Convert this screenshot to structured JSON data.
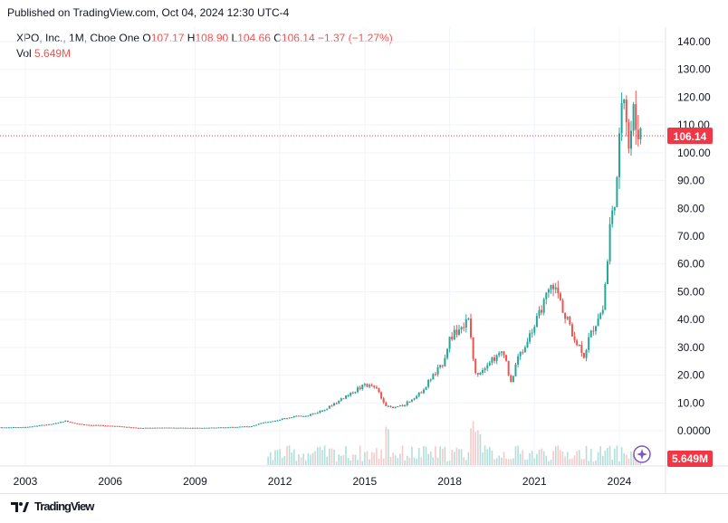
{
  "header": {
    "published": "Published on TradingView.com, Oct 04, 2024 12:30 UTC-4"
  },
  "legend": {
    "symbol": "XPO, Inc., 1M, Cboe One",
    "o_label": "O",
    "o_value": "107.17",
    "h_label": "H",
    "h_value": "108.90",
    "l_label": "L",
    "l_value": "104.66",
    "c_label": "C",
    "c_value": "106.14",
    "change": "−1.37 (−1.27%)",
    "vol_label": "Vol",
    "vol_value": "5.649M"
  },
  "price_tag": "106.14",
  "vol_tag": "5.649M",
  "footer": {
    "brand": "TradingView"
  },
  "colors": {
    "up": "#26a69a",
    "down": "#ef5350",
    "grid": "#f0f3fa",
    "tag_bg": "#f23645"
  },
  "chart_data": {
    "type": "candlestick",
    "x_axis": {
      "labels": [
        "2003",
        "2006",
        "2009",
        "2012",
        "2015",
        "2018",
        "2021",
        "2024"
      ]
    },
    "y_axis": {
      "labels": [
        "140.00",
        "130.00",
        "120.00",
        "110.00",
        "100.00",
        "90.00",
        "80.00",
        "70.00",
        "60.00",
        "50.00",
        "40.00",
        "30.00",
        "20.00",
        "10.00",
        "0.0000"
      ],
      "range": [
        0,
        140
      ]
    },
    "last_price": 106.14,
    "last_volume": "5.649M",
    "series": [
      {
        "name": "XPO, Inc.",
        "period": "1M",
        "points": [
          {
            "date": "2002-01",
            "close": 1.2
          },
          {
            "date": "2003-01",
            "close": 1.3
          },
          {
            "date": "2004-01",
            "close": 2.5
          },
          {
            "date": "2004-06",
            "close": 3.5
          },
          {
            "date": "2005-01",
            "close": 2.2
          },
          {
            "date": "2006-01",
            "close": 1.8
          },
          {
            "date": "2007-01",
            "close": 1.0
          },
          {
            "date": "2008-01",
            "close": 1.1
          },
          {
            "date": "2009-01",
            "close": 1.0
          },
          {
            "date": "2010-01",
            "close": 1.2
          },
          {
            "date": "2011-01",
            "close": 1.6
          },
          {
            "date": "2011-06",
            "close": 3.0
          },
          {
            "date": "2012-01",
            "close": 4.0
          },
          {
            "date": "2012-06",
            "close": 5.0
          },
          {
            "date": "2013-01",
            "close": 5.5
          },
          {
            "date": "2013-06",
            "close": 7.0
          },
          {
            "date": "2014-01",
            "close": 10.0
          },
          {
            "date": "2014-06",
            "close": 13.0
          },
          {
            "date": "2015-01",
            "close": 16.5
          },
          {
            "date": "2015-06",
            "close": 15.0
          },
          {
            "date": "2015-10",
            "close": 9.0
          },
          {
            "date": "2016-01",
            "close": 8.0
          },
          {
            "date": "2016-06",
            "close": 9.5
          },
          {
            "date": "2017-01",
            "close": 14.0
          },
          {
            "date": "2017-06",
            "close": 20.0
          },
          {
            "date": "2017-10",
            "close": 24.0
          },
          {
            "date": "2018-01",
            "close": 33.0
          },
          {
            "date": "2018-06",
            "close": 38.0
          },
          {
            "date": "2018-09",
            "close": 39.0
          },
          {
            "date": "2018-12",
            "close": 20.0
          },
          {
            "date": "2019-06",
            "close": 25.0
          },
          {
            "date": "2019-12",
            "close": 28.0
          },
          {
            "date": "2020-03",
            "close": 17.0
          },
          {
            "date": "2020-06",
            "close": 26.0
          },
          {
            "date": "2020-12",
            "close": 36.0
          },
          {
            "date": "2021-06",
            "close": 48.0
          },
          {
            "date": "2021-09",
            "close": 52.0
          },
          {
            "date": "2022-01",
            "close": 44.0
          },
          {
            "date": "2022-06",
            "close": 33.0
          },
          {
            "date": "2022-10",
            "close": 27.0
          },
          {
            "date": "2023-01",
            "close": 35.0
          },
          {
            "date": "2023-06",
            "close": 45.0
          },
          {
            "date": "2023-09",
            "close": 72.0
          },
          {
            "date": "2023-12",
            "close": 88.0
          },
          {
            "date": "2024-02",
            "close": 121.0
          },
          {
            "date": "2024-03",
            "close": 122.0
          },
          {
            "date": "2024-05",
            "close": 105.0
          },
          {
            "date": "2024-07",
            "close": 115.0
          },
          {
            "date": "2024-09",
            "close": 107.5
          },
          {
            "date": "2024-10",
            "close": 106.14
          }
        ]
      }
    ],
    "grid": true
  }
}
